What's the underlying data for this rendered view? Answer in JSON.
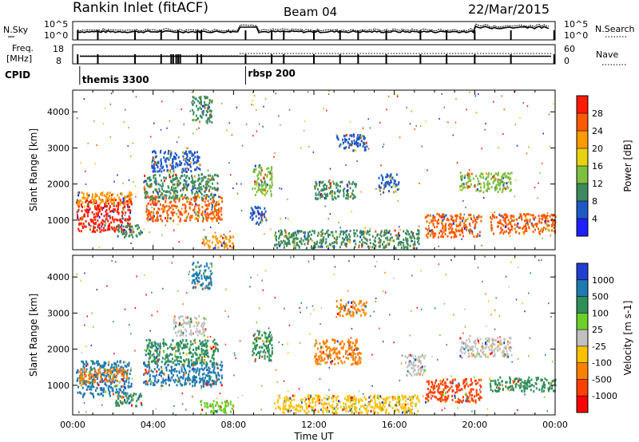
{
  "header": {
    "station": "Rankin Inlet (fitACF)",
    "beam": "Beam 04",
    "date": "22/Mar/2015"
  },
  "noise_panel": {
    "left_label": "N.Sky",
    "right_label": "N.Search",
    "left_ticks": [
      "10^5",
      "10^0"
    ],
    "right_ticks": [
      "10^5",
      "10^0"
    ]
  },
  "freq_panel": {
    "left_label_1": "Freq.",
    "left_label_2": "[MHz]",
    "right_label": "Nave",
    "left_ticks": [
      "18",
      "8"
    ],
    "right_ticks": [
      "60",
      "0"
    ]
  },
  "cpid": {
    "label": "CPID",
    "entries": [
      {
        "name": "themis 3300",
        "time_h": 0.35
      },
      {
        "name": "rbsp 200",
        "time_h": 8.6
      }
    ]
  },
  "chart_data": [
    {
      "type": "heatmap",
      "name": "power",
      "ylabel": "Slant Range [km]",
      "xlabel": "",
      "xlim": [
        0,
        24
      ],
      "ylim": [
        180,
        4600
      ],
      "x_ticks": [
        "00:00",
        "04:00",
        "08:00",
        "12:00",
        "16:00",
        "20:00",
        "00:00"
      ],
      "y_ticks": [
        1000,
        2000,
        3000,
        4000
      ],
      "colorbar": {
        "label": "Power [dB]",
        "ticks": [
          "4",
          "8",
          "12",
          "16",
          "20",
          "24",
          "28"
        ],
        "colors": [
          "#1f1fff",
          "#1e58c4",
          "#3d8a5e",
          "#7fbf3f",
          "#e8d210",
          "#ff9a00",
          "#ff5a00",
          "#ff1a00"
        ]
      },
      "regions": [
        {
          "t0": 0.15,
          "t1": 2.9,
          "r0": 700,
          "r1": 1600,
          "color": "#ff1a00"
        },
        {
          "t0": 0.2,
          "t1": 2.9,
          "r0": 1450,
          "r1": 1800,
          "color": "#ff9a00"
        },
        {
          "t0": 2.2,
          "t1": 3.4,
          "r0": 550,
          "r1": 900,
          "color": "#3d8a5e"
        },
        {
          "t0": 3.6,
          "t1": 7.4,
          "r0": 1000,
          "r1": 1700,
          "color": "#ff5a00"
        },
        {
          "t0": 3.5,
          "t1": 7.2,
          "r0": 1600,
          "r1": 2300,
          "color": "#3d8a5e"
        },
        {
          "t0": 3.9,
          "t1": 6.3,
          "r0": 2350,
          "r1": 2950,
          "color": "#1e58c4"
        },
        {
          "t0": 5.9,
          "t1": 6.9,
          "r0": 3700,
          "r1": 4450,
          "color": "#3d8a5e"
        },
        {
          "t0": 6.4,
          "t1": 8.0,
          "r0": 250,
          "r1": 600,
          "color": "#ff9a00"
        },
        {
          "t0": 8.9,
          "t1": 9.9,
          "r0": 1700,
          "r1": 2550,
          "color": "#7fbf3f"
        },
        {
          "t0": 8.8,
          "t1": 9.6,
          "r0": 900,
          "r1": 1400,
          "color": "#1e58c4"
        },
        {
          "t0": 10.0,
          "t1": 17.2,
          "r0": 250,
          "r1": 750,
          "color": "#3d8a5e"
        },
        {
          "t0": 12.0,
          "t1": 14.1,
          "r0": 1600,
          "r1": 2100,
          "color": "#3d8a5e"
        },
        {
          "t0": 13.1,
          "t1": 14.6,
          "r0": 2950,
          "r1": 3400,
          "color": "#1e58c4"
        },
        {
          "t0": 17.5,
          "t1": 20.3,
          "r0": 550,
          "r1": 1200,
          "color": "#ff5a00"
        },
        {
          "t0": 19.2,
          "t1": 21.8,
          "r0": 1800,
          "r1": 2350,
          "color": "#7fbf3f"
        },
        {
          "t0": 20.7,
          "t1": 24.0,
          "r0": 650,
          "r1": 1200,
          "color": "#ff5a00"
        },
        {
          "t0": 15.2,
          "t1": 16.2,
          "r0": 1800,
          "r1": 2300,
          "color": "#1e58c4"
        }
      ]
    },
    {
      "type": "heatmap",
      "name": "velocity",
      "ylabel": "Slant Range [km]",
      "xlabel": "Time UT",
      "xlim": [
        0,
        24
      ],
      "ylim": [
        180,
        4600
      ],
      "x_ticks": [
        "00:00",
        "04:00",
        "08:00",
        "12:00",
        "16:00",
        "20:00",
        "00:00"
      ],
      "y_ticks": [
        1000,
        2000,
        3000,
        4000
      ],
      "colorbar": {
        "label": "Velocity [m s-1]",
        "ticks": [
          "1000",
          "500",
          "100",
          "25",
          "-25",
          "-100",
          "-500",
          "-1000"
        ],
        "colors": [
          "#1f3fd0",
          "#1e7ab0",
          "#2f8f5a",
          "#6ccf2a",
          "#c0c0c0",
          "#ffc000",
          "#ff8000",
          "#ff4000",
          "#ff0000"
        ]
      },
      "regions": [
        {
          "t0": 0.15,
          "t1": 2.9,
          "r0": 700,
          "r1": 1700,
          "color": "#1e7ab0"
        },
        {
          "t0": 0.3,
          "t1": 2.7,
          "r0": 1100,
          "r1": 1500,
          "color": "#ff8000"
        },
        {
          "t0": 2.1,
          "t1": 3.4,
          "r0": 450,
          "r1": 800,
          "color": "#2f8f5a"
        },
        {
          "t0": 3.5,
          "t1": 7.4,
          "r0": 1000,
          "r1": 1700,
          "color": "#1e7ab0"
        },
        {
          "t0": 3.6,
          "t1": 7.2,
          "r0": 1600,
          "r1": 2300,
          "color": "#2f8f5a"
        },
        {
          "t0": 5.0,
          "t1": 6.6,
          "r0": 2400,
          "r1": 2950,
          "color": "#c0c0c0"
        },
        {
          "t0": 5.9,
          "t1": 6.9,
          "r0": 3700,
          "r1": 4450,
          "color": "#1e7ab0"
        },
        {
          "t0": 6.3,
          "t1": 8.0,
          "r0": 250,
          "r1": 600,
          "color": "#6ccf2a"
        },
        {
          "t0": 8.9,
          "t1": 9.9,
          "r0": 1700,
          "r1": 2550,
          "color": "#2f8f5a"
        },
        {
          "t0": 10.0,
          "t1": 17.2,
          "r0": 250,
          "r1": 750,
          "color": "#ffc000"
        },
        {
          "t0": 12.0,
          "t1": 14.3,
          "r0": 1600,
          "r1": 2300,
          "color": "#ff8000"
        },
        {
          "t0": 13.1,
          "t1": 14.6,
          "r0": 2950,
          "r1": 3400,
          "color": "#ff8000"
        },
        {
          "t0": 17.5,
          "t1": 20.3,
          "r0": 550,
          "r1": 1200,
          "color": "#ff4000"
        },
        {
          "t0": 19.2,
          "t1": 21.8,
          "r0": 1800,
          "r1": 2350,
          "color": "#c0c0c0"
        },
        {
          "t0": 20.7,
          "t1": 24.0,
          "r0": 850,
          "r1": 1250,
          "color": "#2f8f5a"
        },
        {
          "t0": 16.5,
          "t1": 17.5,
          "r0": 1300,
          "r1": 1900,
          "color": "#c0c0c0"
        }
      ]
    }
  ]
}
